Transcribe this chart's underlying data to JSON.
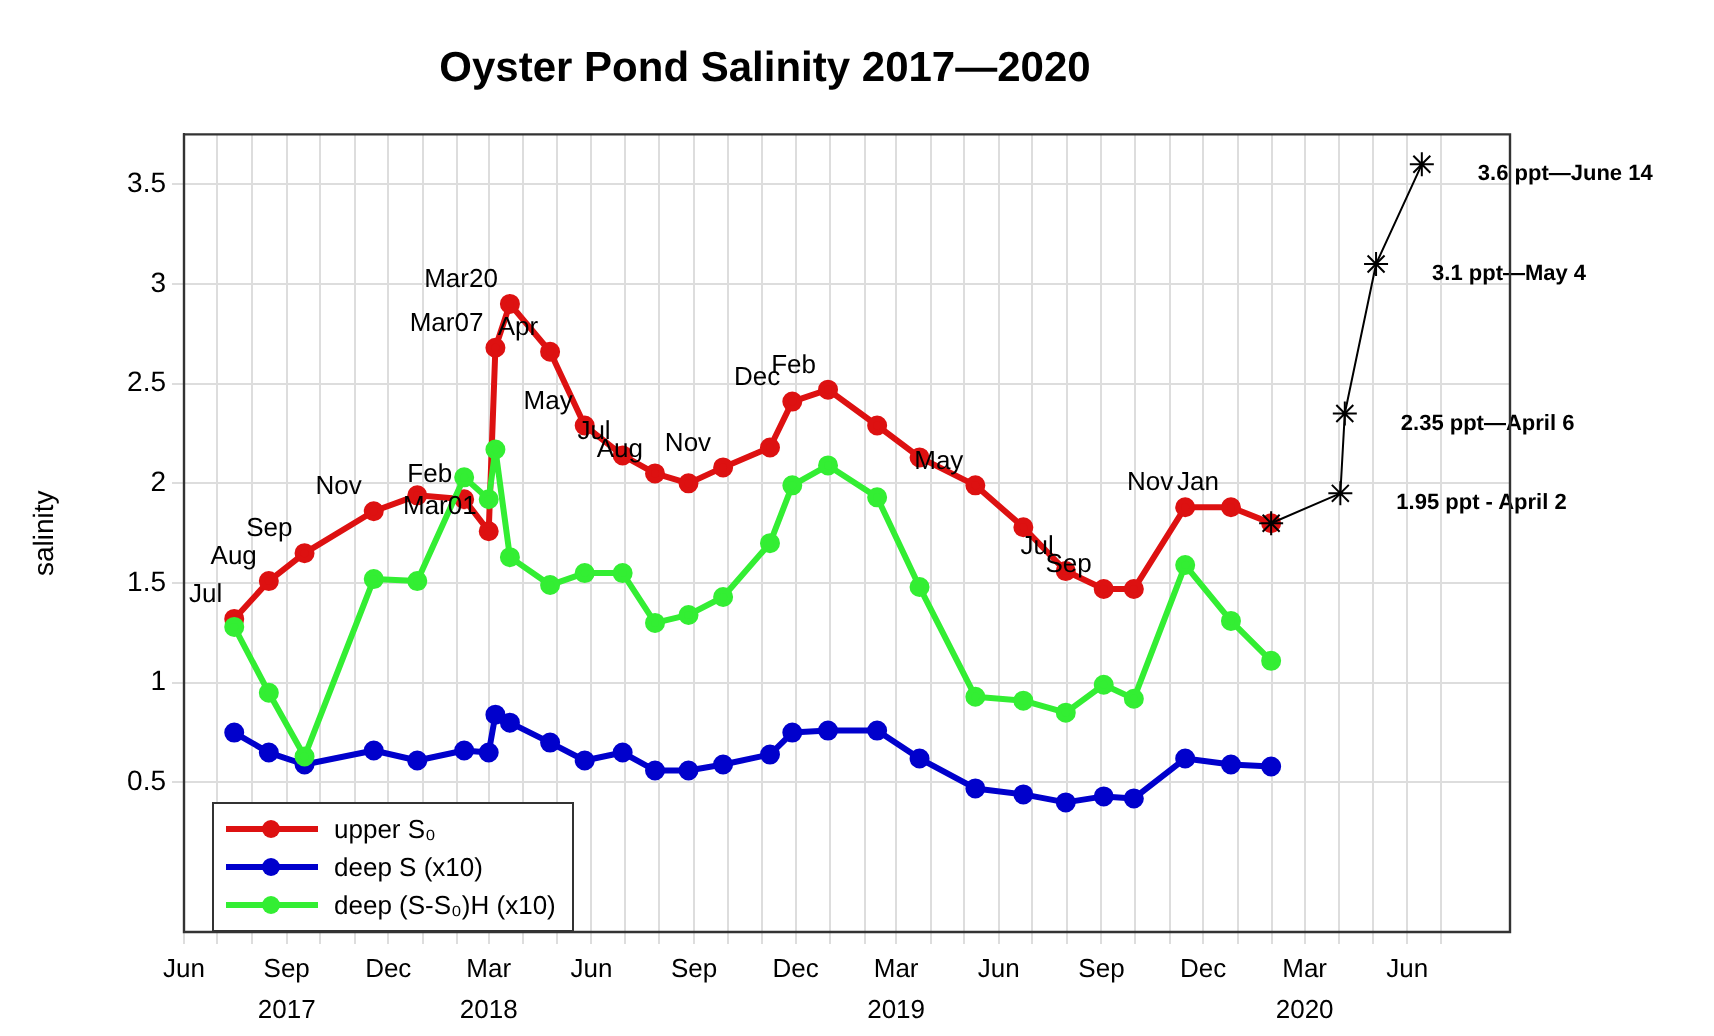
{
  "chart_data": {
    "type": "line",
    "title": "Oyster Pond Salinity 2017—2020",
    "ylabel": "salinity",
    "x": [
      "2017-07-16",
      "2017-08-16",
      "2017-09-17",
      "2017-11-18",
      "2017-12-27",
      "2018-02-07",
      "2018-03-01",
      "2018-03-07",
      "2018-03-20",
      "2018-04-25",
      "2018-05-26",
      "2018-06-29",
      "2018-07-28",
      "2018-08-27",
      "2018-09-27",
      "2018-11-08",
      "2018-11-28",
      "2018-12-30",
      "2019-02-12",
      "2019-03-22",
      "2019-05-11",
      "2019-06-23",
      "2019-07-31",
      "2019-09-03",
      "2019-09-30",
      "2019-11-15",
      "2019-12-26",
      "2020-01-31"
    ],
    "series": [
      {
        "name": "upper S₀",
        "color": "#dd1111",
        "marker": "circle",
        "values": [
          1.32,
          1.51,
          1.65,
          1.86,
          1.94,
          1.92,
          1.76,
          2.68,
          2.9,
          2.66,
          2.29,
          2.14,
          2.05,
          2.0,
          2.08,
          2.18,
          2.41,
          2.47,
          2.29,
          2.13,
          1.99,
          1.78,
          1.56,
          1.47,
          1.47,
          1.88,
          1.88,
          1.8
        ]
      },
      {
        "name": "deep S (x10)",
        "color": "#0000cc",
        "marker": "circle",
        "values": [
          0.75,
          0.65,
          0.59,
          0.66,
          0.61,
          0.66,
          0.65,
          0.84,
          0.8,
          0.7,
          0.61,
          0.65,
          0.56,
          0.56,
          0.59,
          0.64,
          0.75,
          0.76,
          0.76,
          0.62,
          0.47,
          0.44,
          0.4,
          0.43,
          0.42,
          0.62,
          0.59,
          0.58
        ]
      },
      {
        "name": "deep (S-S₀)H (x10)",
        "color": "#33ee33",
        "marker": "circle",
        "values": [
          1.28,
          0.95,
          0.63,
          1.52,
          1.51,
          2.03,
          1.92,
          2.17,
          1.63,
          1.49,
          1.55,
          1.55,
          1.3,
          1.34,
          1.43,
          1.7,
          1.99,
          2.09,
          1.93,
          1.48,
          0.93,
          0.91,
          0.85,
          0.99,
          0.92,
          1.59,
          1.31,
          1.11
        ]
      },
      {
        "color": "#000000",
        "marker": "cross",
        "x": [
          "2020-01-31",
          "2020-04-02",
          "2020-04-06",
          "2020-05-04",
          "2020-06-14"
        ],
        "values": [
          1.8,
          1.95,
          2.35,
          3.1,
          3.6
        ]
      }
    ],
    "xlim": [
      "2017-06",
      "2020-09"
    ],
    "xticks": [
      {
        "value": "2017-06",
        "label": "Jun"
      },
      {
        "value": "2017-07",
        "label": null
      },
      {
        "value": "2017-08",
        "label": null
      },
      {
        "value": "2017-09",
        "label": "Sep\n2017"
      },
      {
        "value": "2017-10",
        "label": null
      },
      {
        "value": "2017-11",
        "label": null
      },
      {
        "value": "2017-12",
        "label": "Dec"
      },
      {
        "value": "2018-01",
        "label": null
      },
      {
        "value": "2018-02",
        "label": null
      },
      {
        "value": "2018-03",
        "label": "Mar\n2018"
      },
      {
        "value": "2018-04",
        "label": null
      },
      {
        "value": "2018-05",
        "label": null
      },
      {
        "value": "2018-06",
        "label": "Jun"
      },
      {
        "value": "2018-07",
        "label": null
      },
      {
        "value": "2018-08",
        "label": null
      },
      {
        "value": "2018-09",
        "label": "Sep"
      },
      {
        "value": "2018-10",
        "label": null
      },
      {
        "value": "2018-11",
        "label": null
      },
      {
        "value": "2018-12",
        "label": "Dec"
      },
      {
        "value": "2019-01",
        "label": null
      },
      {
        "value": "2019-02",
        "label": null
      },
      {
        "value": "2019-03",
        "label": "Mar\n2019"
      },
      {
        "value": "2019-04",
        "label": null
      },
      {
        "value": "2019-05",
        "label": null
      },
      {
        "value": "2019-06",
        "label": "Jun"
      },
      {
        "value": "2019-07",
        "label": null
      },
      {
        "value": "2019-08",
        "label": null
      },
      {
        "value": "2019-09",
        "label": "Sep"
      },
      {
        "value": "2019-10",
        "label": null
      },
      {
        "value": "2019-11",
        "label": null
      },
      {
        "value": "2019-12",
        "label": "Dec"
      },
      {
        "value": "2020-01",
        "label": null
      },
      {
        "value": "2020-02",
        "label": null
      },
      {
        "value": "2020-03",
        "label": "Mar\n2020"
      },
      {
        "value": "2020-04",
        "label": null
      },
      {
        "value": "2020-05",
        "label": null
      },
      {
        "value": "2020-06",
        "label": "Jun"
      },
      {
        "value": "2020-07",
        "label": null
      }
    ],
    "ylim": [
      -0.25,
      3.75
    ],
    "yticks": [
      0.5,
      1,
      1.5,
      2,
      2.5,
      3,
      3.5
    ],
    "grid": true,
    "legend": "bottom left",
    "line_style": "solid",
    "annotations": [
      {
        "text": "Jul",
        "x": "2017-07-16",
        "y": 1.32
      },
      {
        "text": "Aug",
        "x": "2017-08-16",
        "y": 1.51
      },
      {
        "text": "Sep",
        "x": "2017-09-17",
        "y": 1.65
      },
      {
        "text": "Nov",
        "x": "2017-11-18",
        "y": 1.86
      },
      {
        "text": "Feb",
        "x": "2018-02-07",
        "y": 1.92
      },
      {
        "text": "Mar01",
        "x": "2018-03-01",
        "y": 1.76
      },
      {
        "text": "Mar07",
        "x": "2018-03-07",
        "y": 2.68
      },
      {
        "text": "Mar20",
        "x": "2018-03-20",
        "y": 2.9
      },
      {
        "text": "Apr",
        "x": "2018-04-25",
        "y": 2.66
      },
      {
        "text": "May",
        "x": "2018-05-26",
        "y": 2.29
      },
      {
        "text": "Jul",
        "x": "2018-06-29",
        "y": 2.14
      },
      {
        "text": "Aug",
        "x": "2018-07-28",
        "y": 2.05
      },
      {
        "text": "Nov",
        "x": "2018-09-27",
        "y": 2.08
      },
      {
        "text": "Dec",
        "x": "2018-11-28",
        "y": 2.41
      },
      {
        "text": "Feb",
        "x": "2018-12-30",
        "y": 2.47
      },
      {
        "text": "May",
        "x": "2019-05-11",
        "y": 1.99
      },
      {
        "text": "Jul",
        "x": "2019-07-31",
        "y": 1.56
      },
      {
        "text": "Sep",
        "x": "2019-09-03",
        "y": 1.47
      },
      {
        "text": "Nov",
        "x": "2019-11-15",
        "y": 1.88
      },
      {
        "text": "Jan",
        "x": "2019-12-26",
        "y": 1.88
      },
      {
        "text": "3.6 ppt—June 14",
        "x": "2020-06-14",
        "y": 3.6
      },
      {
        "text": "3.1 ppt—May 4",
        "x": "2020-05-04",
        "y": 3.1
      },
      {
        "text": "2.35 ppt—April 6",
        "x": "2020-04-06",
        "y": 2.35
      },
      {
        "text": "1.95 ppt - April 2",
        "x": "2020-04-02",
        "y": 1.95
      }
    ]
  }
}
